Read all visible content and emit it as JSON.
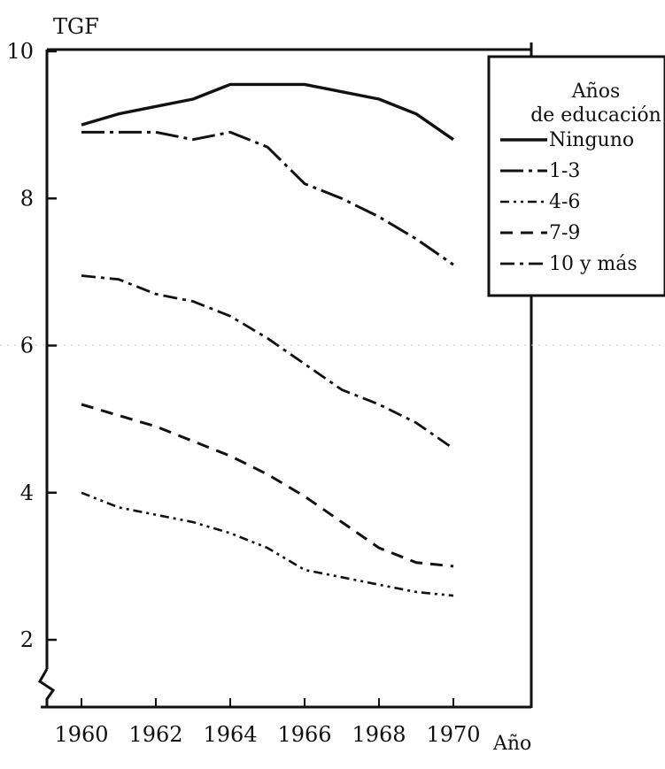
{
  "chart_data": {
    "type": "line",
    "ylabel": "TGF",
    "xlabel": "Año",
    "ylim": [
      1,
      10
    ],
    "xlim": [
      1959,
      1972
    ],
    "y_ticks": [
      2,
      4,
      6,
      8,
      10
    ],
    "y_tick_labels": [
      "2",
      "4",
      "6",
      "8",
      "10"
    ],
    "x_ticks": [
      1960,
      1962,
      1964,
      1966,
      1968,
      1970
    ],
    "x_tick_labels": [
      "1960",
      "1962",
      "1964",
      "1966",
      "1968",
      "1970"
    ],
    "grid": false,
    "axis_break": "y",
    "legend": {
      "placement": "top-right",
      "title_line1": "Años",
      "title_line2": "de educación"
    },
    "x": [
      1960,
      1961,
      1962,
      1963,
      1964,
      1965,
      1966,
      1967,
      1968,
      1969,
      1970
    ],
    "series": [
      {
        "name": "Ninguno",
        "style": "solid",
        "values": [
          9.0,
          9.15,
          9.25,
          9.35,
          9.55,
          9.55,
          9.55,
          9.45,
          9.35,
          9.15,
          8.8
        ]
      },
      {
        "name": "1-3",
        "style": "dash-dot-long",
        "values": [
          8.9,
          8.9,
          8.9,
          8.8,
          8.9,
          8.7,
          8.2,
          8.0,
          7.75,
          7.45,
          7.1
        ]
      },
      {
        "name": "4-6",
        "style": "dash-dot-dot",
        "values": [
          4.0,
          3.8,
          3.7,
          3.6,
          3.45,
          3.25,
          2.95,
          2.85,
          2.75,
          2.65,
          2.6
        ]
      },
      {
        "name": "7-9",
        "style": "dashed",
        "values": [
          5.2,
          5.05,
          4.9,
          4.7,
          4.5,
          4.25,
          3.95,
          3.6,
          3.25,
          3.05,
          3.0
        ]
      },
      {
        "name": "10 y más",
        "style": "dash-dot",
        "values": [
          6.95,
          6.9,
          6.7,
          6.6,
          6.4,
          6.1,
          5.75,
          5.4,
          5.2,
          4.95,
          4.6
        ]
      }
    ]
  }
}
